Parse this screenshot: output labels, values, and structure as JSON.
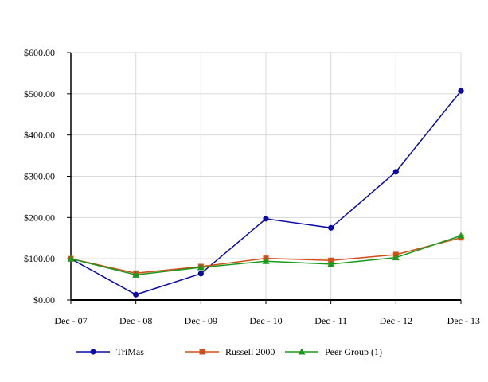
{
  "chart_data": {
    "type": "line",
    "title": "",
    "xlabel": "",
    "ylabel": "",
    "categories": [
      "Dec - 07",
      "Dec - 08",
      "Dec - 09",
      "Dec - 10",
      "Dec - 11",
      "Dec - 12",
      "Dec - 13"
    ],
    "y_ticks": [
      "$0.00",
      "$100.00",
      "$200.00",
      "$300.00",
      "$400.00",
      "$500.00",
      "$600.00"
    ],
    "ylim": [
      0,
      600
    ],
    "grid": true,
    "legend_position": "bottom",
    "series": [
      {
        "name": "TriMas",
        "color": "#0a0aa8",
        "marker": "circle",
        "values": [
          100,
          13,
          64,
          197,
          175,
          311,
          507
        ]
      },
      {
        "name": "Russell 2000",
        "color": "#d0501a",
        "marker": "square",
        "values": [
          100,
          65,
          81,
          101,
          96,
          110,
          151
        ]
      },
      {
        "name": "Peer Group (1)",
        "color": "#1a9a1a",
        "marker": "triangle",
        "values": [
          100,
          61,
          79,
          94,
          87,
          103,
          156
        ]
      }
    ]
  }
}
